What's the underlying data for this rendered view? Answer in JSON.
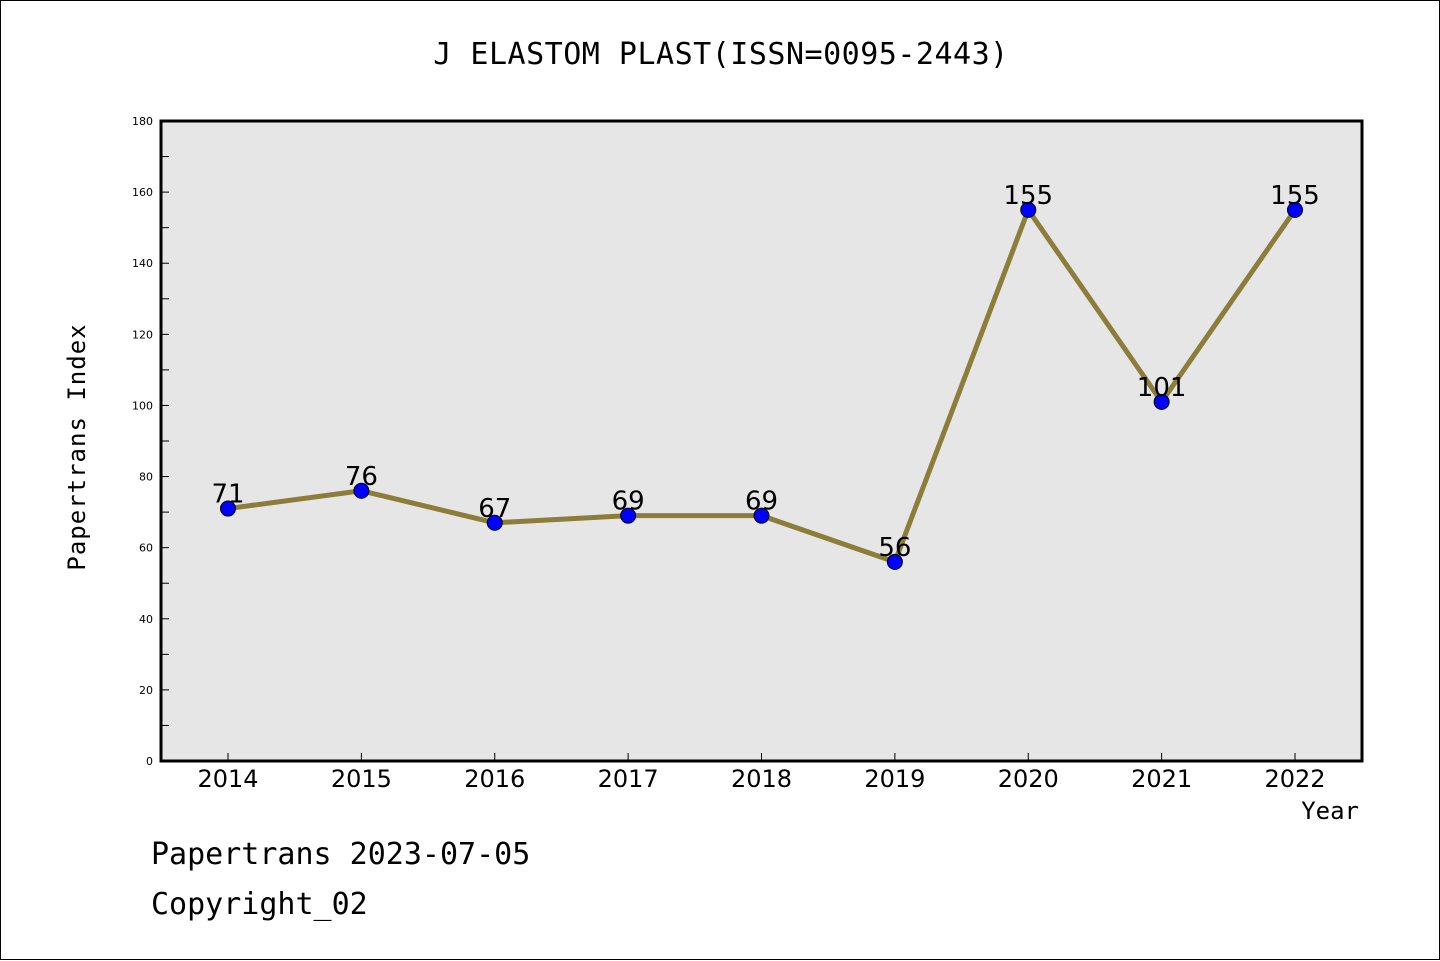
{
  "chart_data": {
    "type": "line",
    "title": "J ELASTOM PLAST(ISSN=0095-2443)",
    "xlabel": "Year",
    "ylabel": "Papertrans Index",
    "categories": [
      "2014",
      "2015",
      "2016",
      "2017",
      "2018",
      "2019",
      "2020",
      "2021",
      "2022"
    ],
    "values": [
      71,
      76,
      67,
      69,
      69,
      56,
      155,
      101,
      155
    ],
    "data_labels": [
      "71",
      "76",
      "67",
      "69",
      "69",
      "56",
      "155",
      "101",
      "155"
    ],
    "ylim": [
      0,
      180
    ],
    "y_ticks": [
      0,
      20,
      40,
      60,
      80,
      100,
      120,
      140,
      160,
      180
    ],
    "y_tick_labels": [
      "0",
      "20",
      "40",
      "60",
      "80",
      "100",
      "120",
      "140",
      "160",
      "180"
    ],
    "grid": false,
    "legend": "none",
    "colors": {
      "line": "#8c7d3a",
      "marker": "#0000ff",
      "plot_background": "#e6e6e6"
    }
  },
  "footer": {
    "date_text": "Papertrans 2023-07-05",
    "copyright_text": "Copyright_02"
  }
}
